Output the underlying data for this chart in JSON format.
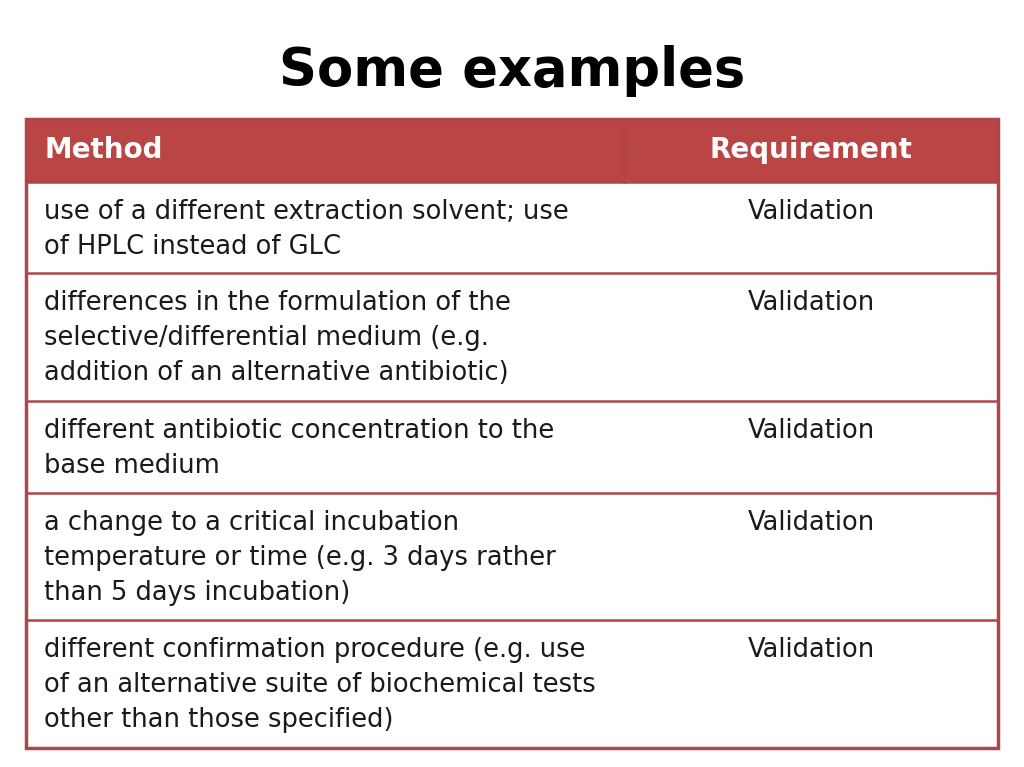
{
  "title": "Some examples",
  "title_fontsize": 38,
  "title_fontweight": "bold",
  "background_color": "#ffffff",
  "header_bg_color": "#b94545",
  "header_text_color": "#ffffff",
  "header_fontsize": 20,
  "header_fontweight": "bold",
  "row_text_color": "#1a1a1a",
  "row_fontsize": 18.5,
  "border_color": "#b04545",
  "col_split": 0.615,
  "columns": [
    "Method",
    "Requirement"
  ],
  "rows": [
    [
      "use of a different extraction solvent; use\nof HPLC instead of GLC",
      "Validation"
    ],
    [
      "differences in the formulation of the\nselective/differential medium (e.g.\naddition of an alternative antibiotic)",
      "Validation"
    ],
    [
      "different antibiotic concentration to the\nbase medium",
      "Validation"
    ],
    [
      "a change to a critical incubation\ntemperature or time (e.g. 3 days rather\nthan 5 days incubation)",
      "Validation"
    ],
    [
      "different confirmation procedure (e.g. use\nof an alternative suite of biochemical tests\nother than those specified)",
      "Validation"
    ]
  ],
  "row_line_counts": [
    2,
    3,
    2,
    3,
    3
  ]
}
